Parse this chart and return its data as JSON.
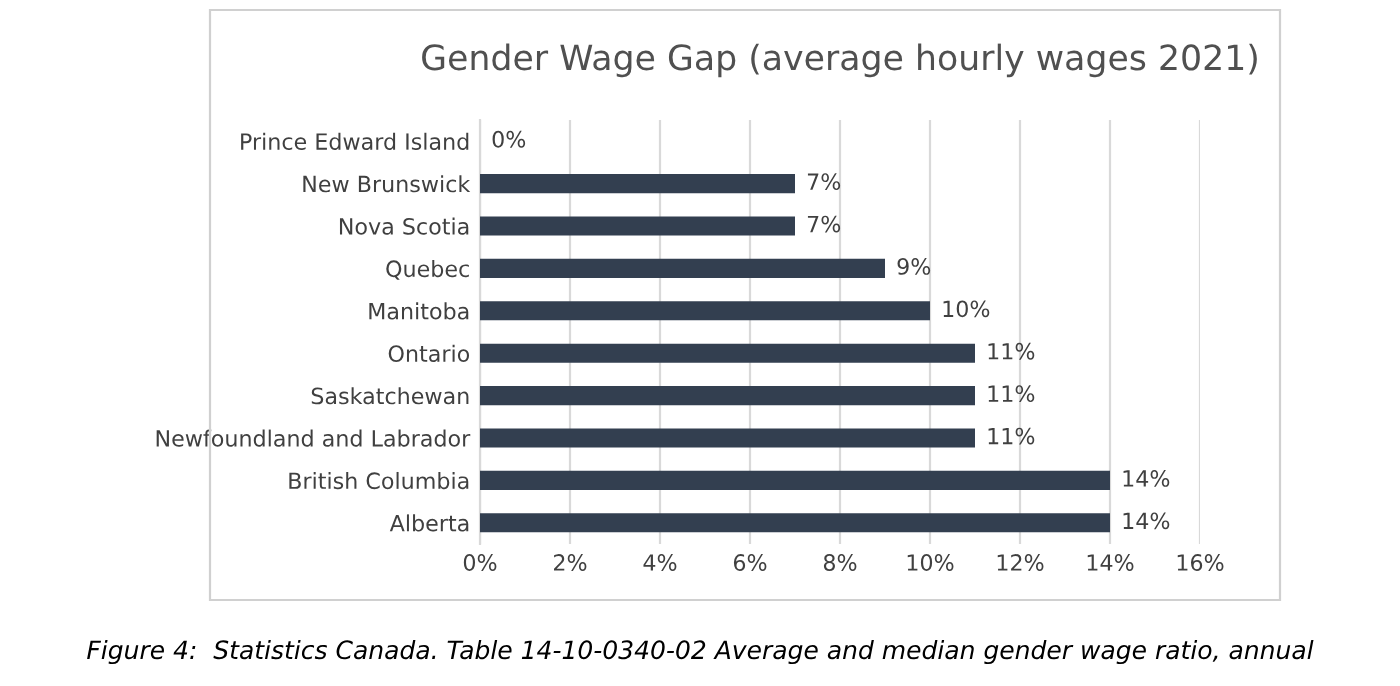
{
  "chart_data": {
    "type": "bar",
    "orientation": "horizontal",
    "title": "Gender Wage Gap (average hourly wages 2021)",
    "categories": [
      "Prince Edward Island",
      "New Brunswick",
      "Nova Scotia",
      "Quebec",
      "Manitoba",
      "Ontario",
      "Saskatchewan",
      "Newfoundland and Labrador",
      "British Columbia",
      "Alberta"
    ],
    "values": [
      0,
      7,
      7,
      9,
      10,
      11,
      11,
      11,
      14,
      14
    ],
    "value_labels": [
      "0%",
      "7%",
      "7%",
      "9%",
      "10%",
      "11%",
      "11%",
      "11%",
      "14%",
      "14%"
    ],
    "color": "#333f50",
    "xlim": [
      0,
      16
    ],
    "xticks": [
      {
        "value": 0,
        "label": "0%"
      },
      {
        "value": 2,
        "label": "2%"
      },
      {
        "value": 4,
        "label": "4%"
      },
      {
        "value": 6,
        "label": "6%"
      },
      {
        "value": 8,
        "label": "8%"
      },
      {
        "value": 10,
        "label": "10%"
      },
      {
        "value": 12,
        "label": "12%"
      },
      {
        "value": 14,
        "label": "14%"
      },
      {
        "value": 16,
        "label": "16%"
      }
    ],
    "grid": "x",
    "annotations": [
      "Figure 4:  Statistics Canada. Table 14-10-0340-02 Average and median gender wage ratio, annual"
    ]
  }
}
